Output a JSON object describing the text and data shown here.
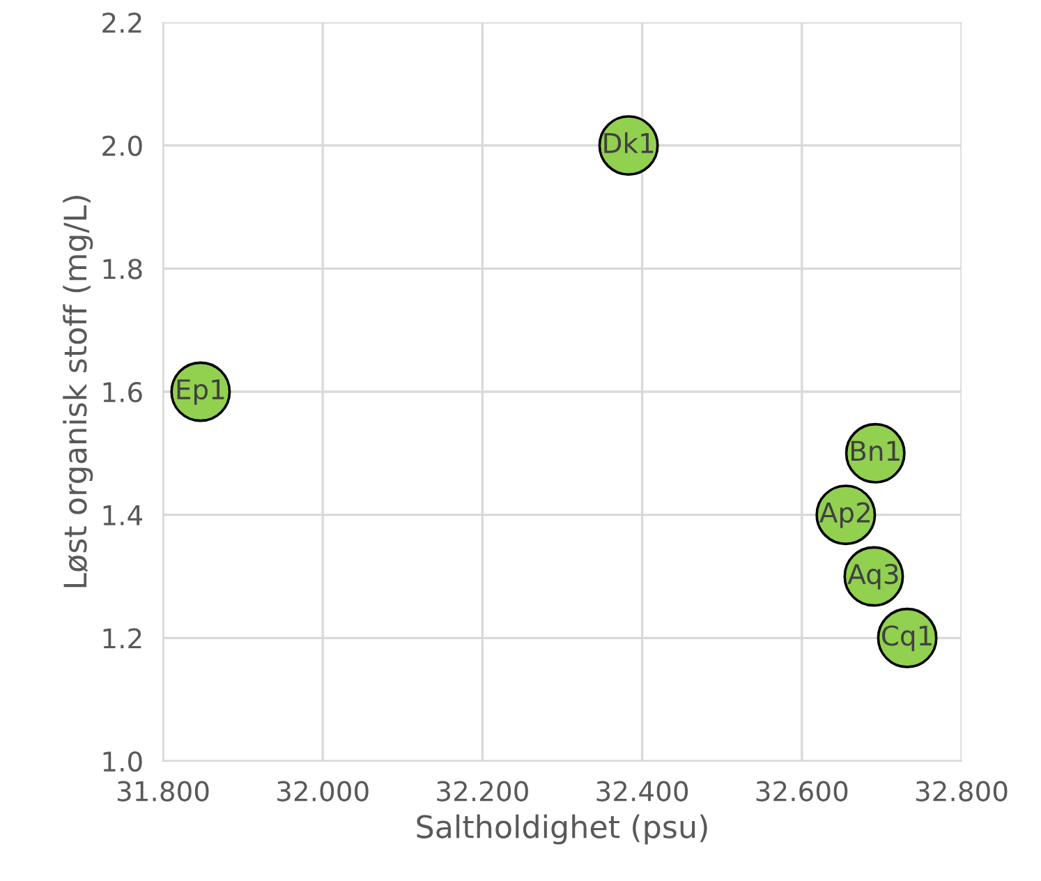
{
  "chart_data": {
    "type": "scatter",
    "xlabel": "Saltholdighet (psu)",
    "ylabel": "Løst organisk stoff (mg/L)",
    "x": [
      32.383,
      31.847,
      32.692,
      32.655,
      32.69,
      32.732
    ],
    "values": [
      2.0,
      1.6,
      1.5,
      1.4,
      1.3,
      1.2
    ],
    "color": "#92d050",
    "marker": "circle",
    "grid": true,
    "xlim": [
      31.8,
      32.8
    ],
    "ylim": [
      1.0,
      2.2
    ],
    "xticks": [
      {
        "value": 31.8,
        "label": "31.800"
      },
      {
        "value": 32.0,
        "label": "32.000"
      },
      {
        "value": 32.2,
        "label": "32.200"
      },
      {
        "value": 32.4,
        "label": "32.400"
      },
      {
        "value": 32.6,
        "label": "32.600"
      },
      {
        "value": 32.8,
        "label": "32.800"
      }
    ],
    "yticks": [
      {
        "value": 1.0,
        "label": "1.0"
      },
      {
        "value": 1.2,
        "label": "1.2"
      },
      {
        "value": 1.4,
        "label": "1.4"
      },
      {
        "value": 1.6,
        "label": "1.6"
      },
      {
        "value": 1.8,
        "label": "1.8"
      },
      {
        "value": 2.0,
        "label": "2.0"
      },
      {
        "value": 2.2,
        "label": "2.2"
      }
    ],
    "annotations": [
      {
        "text": "Dk1",
        "x": 32.383,
        "y": 2.0
      },
      {
        "text": "Ep1",
        "x": 31.847,
        "y": 1.6
      },
      {
        "text": "Bn1",
        "x": 32.692,
        "y": 1.5
      },
      {
        "text": "Ap2",
        "x": 32.655,
        "y": 1.4
      },
      {
        "text": "Aq3",
        "x": 32.69,
        "y": 1.3
      },
      {
        "text": "Cq1",
        "x": 32.732,
        "y": 1.2
      }
    ]
  }
}
